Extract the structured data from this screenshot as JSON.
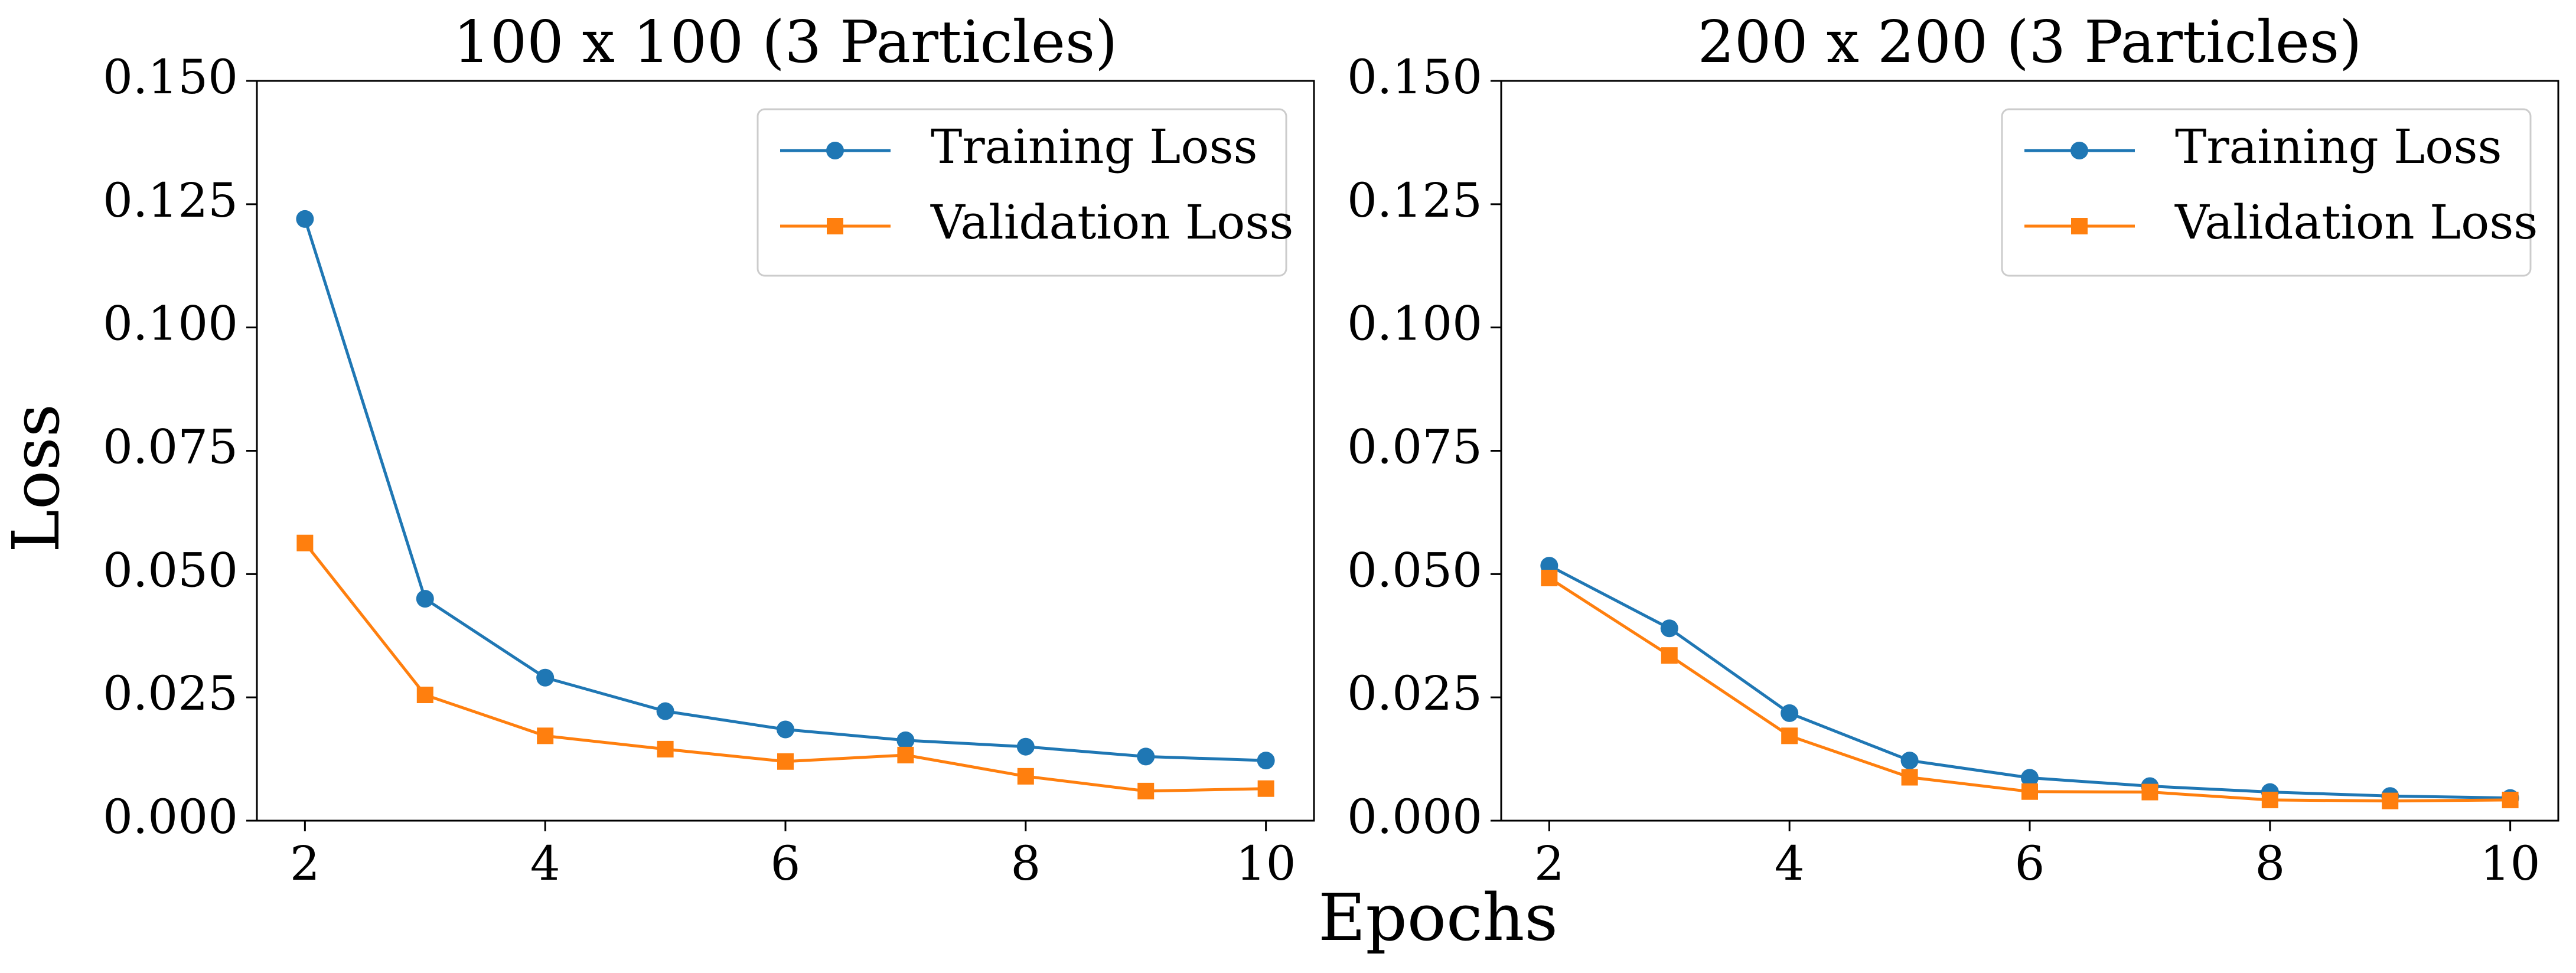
{
  "figure": {
    "ylabel": "Loss",
    "xlabel": "Epochs"
  },
  "colors": {
    "training": "#1f77b4",
    "validation": "#ff7f0e",
    "axis": "#000000",
    "legend_border": "#cccccc"
  },
  "chart_data": [
    {
      "type": "line",
      "title": "100 x 100 (3 Particles)",
      "xlabel": "Epochs",
      "ylabel": "Loss",
      "x": [
        2,
        3,
        4,
        5,
        6,
        7,
        8,
        9,
        10
      ],
      "xlim": [
        1.6,
        10.4
      ],
      "ylim": [
        0,
        0.15
      ],
      "xticks": [
        2,
        4,
        6,
        8,
        10
      ],
      "xtick_labels": [
        "2",
        "4",
        "6",
        "8",
        "10"
      ],
      "yticks": [
        0,
        0.025,
        0.05,
        0.075,
        0.1,
        0.125,
        0.15
      ],
      "ytick_labels": [
        "0.000",
        "0.025",
        "0.050",
        "0.075",
        "0.100",
        "0.125",
        "0.150"
      ],
      "legend_position": "top-right",
      "grid": false,
      "series": [
        {
          "name": "Training Loss",
          "marker": "circle",
          "values": [
            0.122,
            0.045,
            0.029,
            0.0222,
            0.0185,
            0.0163,
            0.015,
            0.013,
            0.0122
          ]
        },
        {
          "name": "Validation Loss",
          "marker": "square",
          "values": [
            0.0563,
            0.0255,
            0.0172,
            0.0145,
            0.012,
            0.0133,
            0.009,
            0.006,
            0.0065
          ]
        }
      ]
    },
    {
      "type": "line",
      "title": "200 x 200 (3 Particles)",
      "xlabel": "Epochs",
      "ylabel": "Loss",
      "x": [
        2,
        3,
        4,
        5,
        6,
        7,
        8,
        9,
        10
      ],
      "xlim": [
        1.6,
        10.4
      ],
      "ylim": [
        0,
        0.15
      ],
      "xticks": [
        2,
        4,
        6,
        8,
        10
      ],
      "xtick_labels": [
        "2",
        "4",
        "6",
        "8",
        "10"
      ],
      "yticks": [
        0,
        0.025,
        0.05,
        0.075,
        0.1,
        0.125,
        0.15
      ],
      "ytick_labels": [
        "0.000",
        "0.025",
        "0.050",
        "0.075",
        "0.100",
        "0.125",
        "0.150"
      ],
      "legend_position": "top-right",
      "grid": false,
      "series": [
        {
          "name": "Training Loss",
          "marker": "circle",
          "values": [
            0.0517,
            0.039,
            0.0218,
            0.0122,
            0.0087,
            0.007,
            0.0058,
            0.005,
            0.0046
          ]
        },
        {
          "name": "Validation Loss",
          "marker": "square",
          "values": [
            0.0492,
            0.0335,
            0.0172,
            0.0088,
            0.0059,
            0.0058,
            0.0042,
            0.004,
            0.0042
          ]
        }
      ]
    }
  ]
}
